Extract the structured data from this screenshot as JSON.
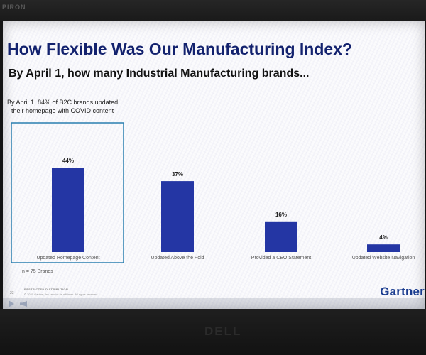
{
  "device": {
    "bezel_brand": "PIRON",
    "monitor_logo": "DELL"
  },
  "slide": {
    "title": "How Flexible Was Our Manufacturing Index?",
    "subtitle": "By April 1, how many Industrial Manufacturing brands...",
    "callout_line1": "By April 1, 84% of B2C brands updated",
    "callout_line2": "their homepage with COVID content",
    "base_note": "n = 75 Brands",
    "restricted_label": "RESTRICTED DISTRIBUTION",
    "page_number": "23",
    "copyright": "© 2020 Gartner, Inc. and/or its affiliates. All rights reserved.",
    "logo": "Gartner"
  },
  "colors": {
    "title": "#13226e",
    "bar": "#2436a4",
    "highlight_border": "#2a7fb0",
    "logo": "#1a3c8f"
  },
  "icons": [
    "play-icon",
    "volume-icon"
  ],
  "chart_data": {
    "type": "bar",
    "title": "",
    "xlabel": "",
    "ylabel": "",
    "categories": [
      "Updated Homepage Content",
      "Updated Above the Fold",
      "Provided a CEO Statement",
      "Updated Website Navigation"
    ],
    "values": [
      44,
      37,
      16,
      4
    ],
    "value_labels": [
      "44%",
      "37%",
      "16%",
      "4%"
    ],
    "unit": "%",
    "ylim": [
      0,
      50
    ],
    "highlighted_category": "Updated Homepage Content",
    "grid": false,
    "legend": "none"
  }
}
